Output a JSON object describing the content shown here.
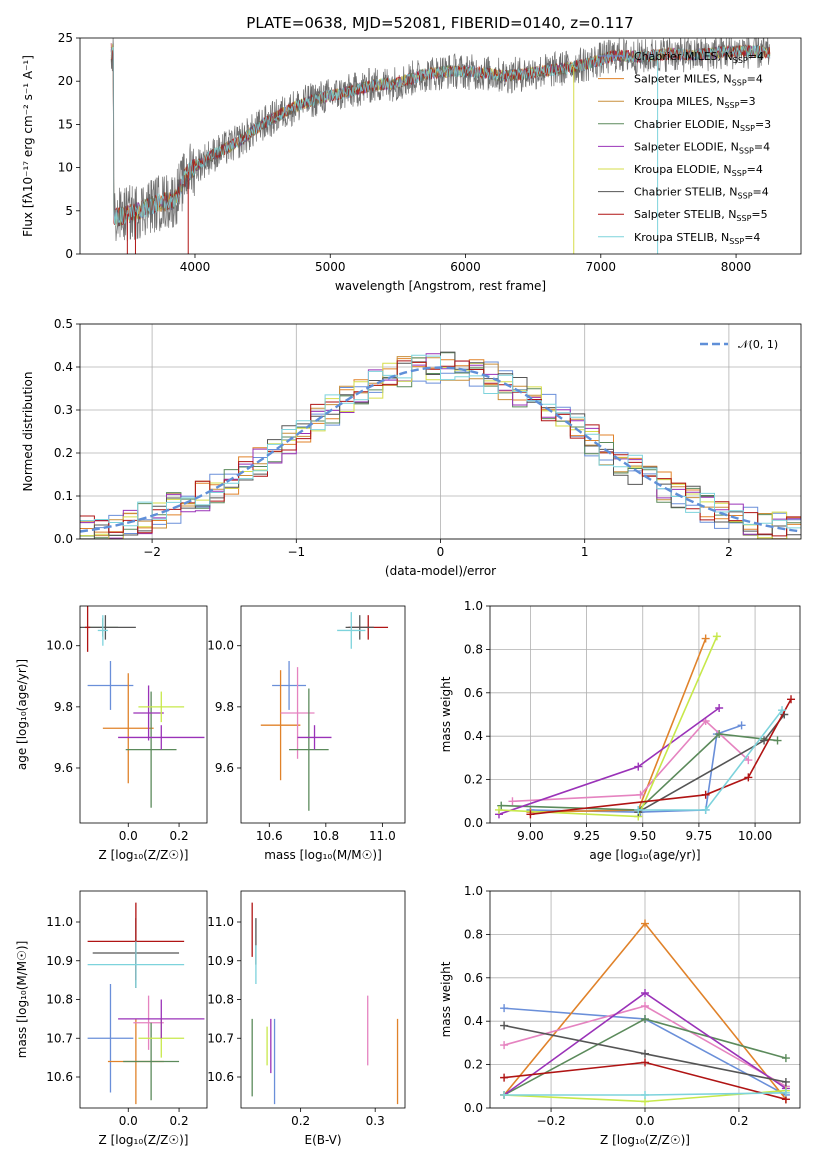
{
  "figure_title": "PLATE=0638, MJD=52081, FIBERID=0140, z=0.117",
  "colors": {
    "models": [
      "#6a8fd9",
      "#e0822a",
      "#c98f3b",
      "#5b8a5b",
      "#9a32b8",
      "#d6dd4a",
      "#555555",
      "#b01414",
      "#7dd3dc"
    ],
    "pink": "#e583c0",
    "yellow": "#c7e84a",
    "normal_curve": "#5f8fd8"
  },
  "chart_data": [
    {
      "type": "line",
      "title": "PLATE=0638, MJD=52081, FIBERID=0140, z=0.117",
      "xlabel": "wavelength [Angstrom, rest frame]",
      "ylabel": "Flux [fλ10⁻¹⁷ erg cm⁻² s⁻¹ A⁻¹]",
      "xlim": [
        3150,
        8480
      ],
      "ylim": [
        0,
        25
      ],
      "xticks": [
        "4000",
        "5000",
        "6000",
        "7000",
        "8000"
      ],
      "yticks": [
        "0",
        "5",
        "10",
        "15",
        "20",
        "25"
      ],
      "grid": false,
      "legend_position": "right",
      "spectrum_envelope": {
        "x": [
          3400,
          3550,
          3700,
          3850,
          3950,
          4100,
          4300,
          4500,
          4700,
          4900,
          5100,
          5300,
          5500,
          5700,
          5900,
          6100,
          6300,
          6500,
          6700,
          6900,
          7100,
          7300,
          7500,
          7700,
          7900,
          8100,
          8250
        ],
        "y": [
          4.2,
          4.8,
          5.8,
          6.3,
          9.5,
          11.2,
          12.8,
          15.0,
          16.8,
          18.0,
          18.6,
          19.5,
          19.8,
          20.8,
          21.2,
          21.0,
          20.6,
          21.0,
          21.4,
          22.0,
          23.0,
          22.8,
          23.2,
          23.0,
          23.4,
          23.5,
          23.3
        ]
      },
      "series": [
        {
          "name": "Chabrier MILES, N_SSP=4"
        },
        {
          "name": "Salpeter MILES, N_SSP=4"
        },
        {
          "name": "Kroupa MILES, N_SSP=3"
        },
        {
          "name": "Chabrier ELODIE, N_SSP=3"
        },
        {
          "name": "Salpeter ELODIE, N_SSP=4"
        },
        {
          "name": "Kroupa ELODIE, N_SSP=4"
        },
        {
          "name": "Chabrier STELIB, N_SSP=4"
        },
        {
          "name": "Salpeter STELIB, N_SSP=5"
        },
        {
          "name": "Kroupa STELIB, N_SSP=4"
        }
      ]
    },
    {
      "type": "step",
      "xlabel": "(data-model)/error",
      "ylabel": "Normed distribution",
      "xlim": [
        -2.5,
        2.5
      ],
      "ylim": [
        0,
        0.5
      ],
      "xticks": [
        "−2",
        "−1",
        "0",
        "1",
        "2"
      ],
      "yticks": [
        "0.0",
        "0.1",
        "0.2",
        "0.3",
        "0.4",
        "0.5"
      ],
      "grid": true,
      "legend_position": "top-right",
      "legend": [
        "𝒩(0, 1)"
      ],
      "bin_width": 0.1,
      "normal_curve": {
        "mean": 0,
        "sigma": 1
      }
    },
    {
      "type": "scatter",
      "xlabel": "Z [log₁₀(Z/Z☉)]",
      "ylabel": "age  [log₁₀(age/yr)]",
      "xlim": [
        -0.19,
        0.31
      ],
      "ylim": [
        9.42,
        10.13
      ],
      "xticks": [
        "0.0",
        "0.2"
      ],
      "yticks": [
        "9.6",
        "9.8",
        "10.0"
      ],
      "points": [
        {
          "x": -0.07,
          "y": 9.87,
          "xerr": 0.09,
          "yerr": 0.08,
          "c": "#6a8fd9"
        },
        {
          "x": 0.0,
          "y": 9.73,
          "xerr": 0.1,
          "yerr": 0.18,
          "c": "#e0822a"
        },
        {
          "x": -0.1,
          "y": 10.06,
          "xerr": 0.06,
          "yerr": 0.03,
          "c": "#5b8a5b"
        },
        {
          "x": 0.09,
          "y": 9.66,
          "xerr": 0.1,
          "yerr": 0.19,
          "c": "#5b8a5b"
        },
        {
          "x": 0.08,
          "y": 9.78,
          "xerr": 0.06,
          "yerr": 0.09,
          "c": "#9a32b8"
        },
        {
          "x": 0.13,
          "y": 9.8,
          "xerr": 0.09,
          "yerr": 0.05,
          "c": "#c7e84a"
        },
        {
          "x": -0.09,
          "y": 10.06,
          "xerr": 0.12,
          "yerr": 0.04,
          "c": "#555555"
        },
        {
          "x": 0.13,
          "y": 9.7,
          "xerr": 0.17,
          "yerr": 0.04,
          "c": "#9a32b8"
        },
        {
          "x": -0.16,
          "y": 10.06,
          "xerr": 0.01,
          "yerr": 0.08,
          "c": "#b01414"
        },
        {
          "x": -0.1,
          "y": 10.05,
          "xerr": 0.02,
          "yerr": 0.05,
          "c": "#7dd3dc"
        }
      ]
    },
    {
      "type": "scatter",
      "xlabel": "mass [log₁₀(M/M☉)]",
      "xlim": [
        10.5,
        11.08
      ],
      "ylim": [
        9.42,
        10.13
      ],
      "xticks": [
        "10.6",
        "10.8",
        "11.0"
      ],
      "yticks": [
        "9.6",
        "9.8",
        "10.0"
      ],
      "points": [
        {
          "x": 10.67,
          "y": 9.87,
          "xerr": 0.06,
          "yerr": 0.08,
          "c": "#6a8fd9"
        },
        {
          "x": 10.64,
          "y": 9.74,
          "xerr": 0.07,
          "yerr": 0.18,
          "c": "#e0822a"
        },
        {
          "x": 10.7,
          "y": 9.78,
          "xerr": 0.06,
          "yerr": 0.15,
          "c": "#e583c0"
        },
        {
          "x": 10.74,
          "y": 9.66,
          "xerr": 0.07,
          "yerr": 0.2,
          "c": "#5b8a5b"
        },
        {
          "x": 10.76,
          "y": 9.7,
          "xerr": 0.06,
          "yerr": 0.04,
          "c": "#9a32b8"
        },
        {
          "x": 10.95,
          "y": 10.06,
          "xerr": 0.07,
          "yerr": 0.04,
          "c": "#b01414"
        },
        {
          "x": 10.92,
          "y": 10.06,
          "xerr": 0.05,
          "yerr": 0.04,
          "c": "#555555"
        },
        {
          "x": 10.89,
          "y": 10.05,
          "xerr": 0.05,
          "yerr": 0.06,
          "c": "#7dd3dc"
        }
      ]
    },
    {
      "type": "line",
      "xlabel": "age  [log₁₀(age/yr)]",
      "ylabel": "mass weight",
      "xlim": [
        8.82,
        10.2
      ],
      "ylim": [
        0,
        1
      ],
      "xticks": [
        "9.00",
        "9.25",
        "9.50",
        "9.75",
        "10.00"
      ],
      "yticks": [
        "0.0",
        "0.2",
        "0.4",
        "0.6",
        "0.8",
        "1.0"
      ],
      "grid": true,
      "series": [
        {
          "c": "#6a8fd9",
          "x": [
            9.0,
            9.49,
            9.78,
            9.83,
            9.94
          ],
          "y": [
            0.06,
            0.05,
            0.06,
            0.41,
            0.45
          ]
        },
        {
          "c": "#e0822a",
          "x": [
            9.0,
            9.48,
            9.78
          ],
          "y": [
            0.05,
            0.06,
            0.85
          ]
        },
        {
          "c": "#e583c0",
          "x": [
            8.92,
            9.49,
            9.78,
            9.97
          ],
          "y": [
            0.1,
            0.13,
            0.47,
            0.29
          ]
        },
        {
          "c": "#5b8a5b",
          "x": [
            8.87,
            9.48,
            9.84,
            10.1
          ],
          "y": [
            0.08,
            0.06,
            0.41,
            0.38
          ]
        },
        {
          "c": "#9a32b8",
          "x": [
            8.86,
            9.48,
            9.84
          ],
          "y": [
            0.04,
            0.26,
            0.53
          ]
        },
        {
          "c": "#c7e84a",
          "x": [
            8.86,
            9.48,
            9.83
          ],
          "y": [
            0.06,
            0.03,
            0.86
          ]
        },
        {
          "c": "#555555",
          "x": [
            9.48,
            10.04,
            10.13
          ],
          "y": [
            0.05,
            0.38,
            0.5
          ]
        },
        {
          "c": "#b01414",
          "x": [
            9.0,
            9.78,
            9.97,
            10.16
          ],
          "y": [
            0.04,
            0.13,
            0.21,
            0.57
          ]
        },
        {
          "c": "#7dd3dc",
          "x": [
            9.48,
            9.78,
            10.12
          ],
          "y": [
            0.06,
            0.06,
            0.52
          ]
        }
      ]
    },
    {
      "type": "scatter",
      "xlabel": "Z [log₁₀(Z/Z☉)]",
      "ylabel": "mass [log₁₀(M/M☉)]",
      "xlim": [
        -0.19,
        0.31
      ],
      "ylim": [
        10.52,
        11.08
      ],
      "xticks": [
        "0.0",
        "0.2"
      ],
      "yticks": [
        "10.6",
        "10.7",
        "10.8",
        "10.9",
        "11.0"
      ],
      "points": [
        {
          "x": -0.07,
          "y": 10.7,
          "xerr": 0.09,
          "yerr": 0.14,
          "c": "#6a8fd9"
        },
        {
          "x": 0.03,
          "y": 10.64,
          "xerr": 0.11,
          "yerr": 0.11,
          "c": "#e0822a"
        },
        {
          "x": 0.08,
          "y": 10.74,
          "xerr": 0.06,
          "yerr": 0.07,
          "c": "#e583c0"
        },
        {
          "x": 0.09,
          "y": 10.64,
          "xerr": 0.11,
          "yerr": 0.1,
          "c": "#5b8a5b"
        },
        {
          "x": 0.13,
          "y": 10.7,
          "xerr": 0.09,
          "yerr": 0.05,
          "c": "#c7e84a"
        },
        {
          "x": 0.13,
          "y": 10.75,
          "xerr": 0.17,
          "yerr": 0.05,
          "c": "#9a32b8"
        },
        {
          "x": 0.03,
          "y": 10.92,
          "xerr": 0.17,
          "yerr": 0.09,
          "c": "#555555"
        },
        {
          "x": 0.03,
          "y": 10.95,
          "xerr": 0.19,
          "yerr": 0.1,
          "c": "#b01414"
        },
        {
          "x": 0.03,
          "y": 10.89,
          "xerr": 0.19,
          "yerr": 0.06,
          "c": "#7dd3dc"
        }
      ]
    },
    {
      "type": "scatter",
      "xlabel": "E(B-V)",
      "xlim": [
        0.12,
        0.34
      ],
      "ylim": [
        10.52,
        11.08
      ],
      "xticks": [
        "0.2",
        "0.3"
      ],
      "yticks": [
        "10.6",
        "10.7",
        "10.8",
        "10.9",
        "11.0"
      ],
      "points": [
        {
          "x": 0.135,
          "y": 10.98,
          "xerr": 0.0,
          "yerr": 0.07,
          "c": "#b01414"
        },
        {
          "x": 0.14,
          "y": 10.95,
          "xerr": 0.0,
          "yerr": 0.06,
          "c": "#555555"
        },
        {
          "x": 0.14,
          "y": 10.89,
          "xerr": 0.0,
          "yerr": 0.05,
          "c": "#7dd3dc"
        },
        {
          "x": 0.135,
          "y": 10.65,
          "xerr": 0.0,
          "yerr": 0.1,
          "c": "#5b8a5b"
        },
        {
          "x": 0.155,
          "y": 10.68,
          "xerr": 0.0,
          "yerr": 0.05,
          "c": "#c7e84a"
        },
        {
          "x": 0.16,
          "y": 10.68,
          "xerr": 0.0,
          "yerr": 0.07,
          "c": "#9a32b8"
        },
        {
          "x": 0.165,
          "y": 10.64,
          "xerr": 0.0,
          "yerr": 0.11,
          "c": "#6a8fd9"
        },
        {
          "x": 0.29,
          "y": 10.72,
          "xerr": 0.0,
          "yerr": 0.09,
          "c": "#e583c0"
        },
        {
          "x": 0.33,
          "y": 10.64,
          "xerr": 0.0,
          "yerr": 0.11,
          "c": "#e0822a"
        }
      ]
    },
    {
      "type": "line",
      "xlabel": "Z [log₁₀(Z/Z☉)]",
      "ylabel": "mass weight",
      "xlim": [
        -0.33,
        0.33
      ],
      "ylim": [
        0,
        1
      ],
      "xticks": [
        "−0.2",
        "0.0",
        "0.2"
      ],
      "yticks": [
        "0.0",
        "0.2",
        "0.4",
        "0.6",
        "0.8",
        "1.0"
      ],
      "grid": true,
      "series": [
        {
          "c": "#6a8fd9",
          "x": [
            -0.3,
            0.0,
            0.3
          ],
          "y": [
            0.46,
            0.41,
            0.06
          ]
        },
        {
          "c": "#e0822a",
          "x": [
            -0.3,
            0.0,
            0.3
          ],
          "y": [
            0.06,
            0.85,
            0.04
          ]
        },
        {
          "c": "#e583c0",
          "x": [
            -0.3,
            0.0,
            0.3
          ],
          "y": [
            0.29,
            0.47,
            0.1
          ]
        },
        {
          "c": "#5b8a5b",
          "x": [
            -0.3,
            0.0,
            0.3
          ],
          "y": [
            0.06,
            0.41,
            0.23
          ]
        },
        {
          "c": "#9a32b8",
          "x": [
            -0.3,
            0.0,
            0.3
          ],
          "y": [
            0.06,
            0.53,
            0.09
          ]
        },
        {
          "c": "#c7e84a",
          "x": [
            -0.3,
            0.0,
            0.3
          ],
          "y": [
            0.06,
            0.03,
            0.08
          ]
        },
        {
          "c": "#555555",
          "x": [
            -0.3,
            0.0,
            0.3
          ],
          "y": [
            0.38,
            0.25,
            0.12
          ]
        },
        {
          "c": "#b01414",
          "x": [
            -0.3,
            0.0,
            0.3
          ],
          "y": [
            0.14,
            0.21,
            0.04
          ]
        },
        {
          "c": "#7dd3dc",
          "x": [
            -0.3,
            0.0,
            0.3
          ],
          "y": [
            0.06,
            0.06,
            0.07
          ]
        }
      ]
    }
  ]
}
